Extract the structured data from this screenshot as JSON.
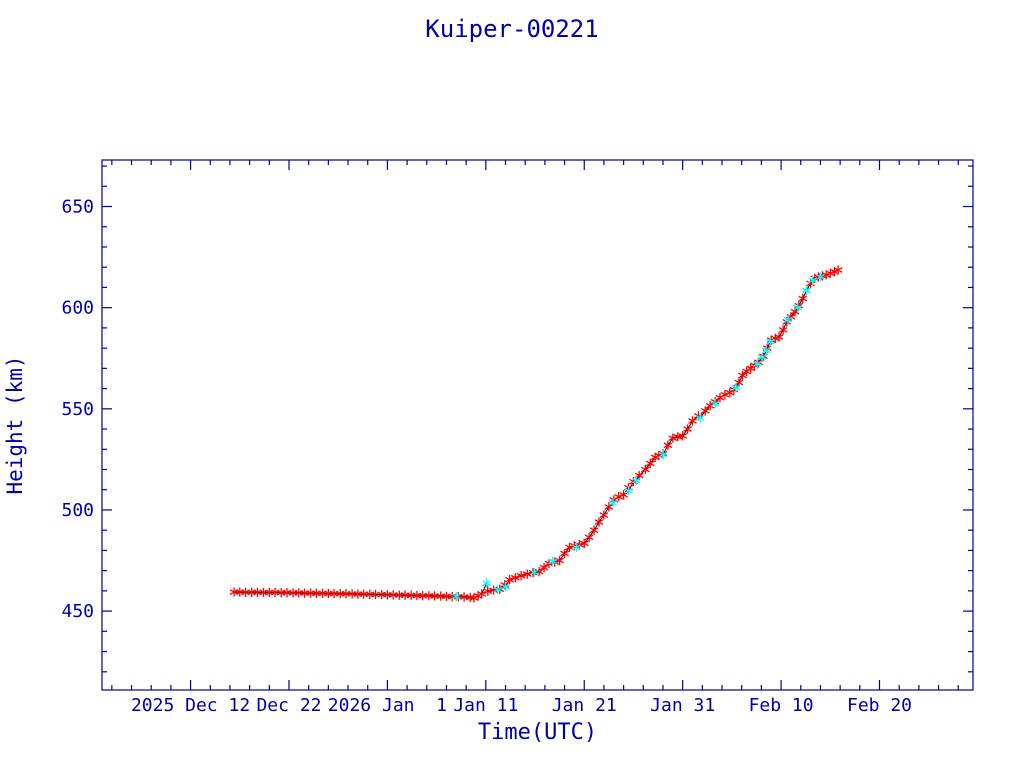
{
  "chart_data": {
    "type": "line",
    "title": "Kuiper-00221",
    "xlabel": "Time(UTC)",
    "ylabel": "Height (km)",
    "xlim": [
      "2025-12-03 00:00",
      "2026-03-01 12:00"
    ],
    "ylim": [
      411,
      673
    ],
    "grid": false,
    "x_ticks": [
      {
        "value": "2025-12-12",
        "label": "2025 Dec 12"
      },
      {
        "value": "2025-12-22",
        "label": "Dec 22"
      },
      {
        "value": "2026-01-01",
        "label": "2026 Jan  1"
      },
      {
        "value": "2026-01-11",
        "label": "Jan 11"
      },
      {
        "value": "2026-01-21",
        "label": "Jan 21"
      },
      {
        "value": "2026-01-31",
        "label": "Jan 31"
      },
      {
        "value": "2026-02-10",
        "label": "Feb 10"
      },
      {
        "value": "2026-02-20",
        "label": "Feb 20"
      }
    ],
    "x_minor_step_days": 2,
    "y_ticks": [
      450,
      500,
      550,
      600,
      650
    ],
    "y_minor_step": 10,
    "axis_color": "#000099",
    "text_color": "#0000aa",
    "line_color": "#000000",
    "series": [
      {
        "color": "#ff0000",
        "marker": "asterisk",
        "x": [
          "2025-12-16 10:00",
          "2025-12-17 00:00",
          "2025-12-17 14:00",
          "2025-12-18 05:00",
          "2025-12-18 19:00",
          "2025-12-19 10:00",
          "2025-12-20 00:00",
          "2025-12-20 14:00",
          "2025-12-21 05:00",
          "2025-12-21 19:00",
          "2025-12-22 10:00",
          "2025-12-23 00:00",
          "2025-12-23 14:00",
          "2025-12-24 05:00",
          "2025-12-24 19:00",
          "2025-12-25 10:00",
          "2025-12-26 00:00",
          "2025-12-26 14:00",
          "2025-12-27 05:00",
          "2025-12-27 19:00",
          "2025-12-28 10:00",
          "2025-12-29 00:00",
          "2025-12-29 14:00",
          "2025-12-30 05:00",
          "2025-12-30 19:00",
          "2025-12-31 10:00",
          "2026-01-01 00:00",
          "2026-01-01 14:00",
          "2026-01-02 05:00",
          "2026-01-02 19:00",
          "2026-01-03 10:00",
          "2026-01-04 00:00",
          "2026-01-04 14:00",
          "2026-01-05 05:00",
          "2026-01-05 19:00",
          "2026-01-06 10:00",
          "2026-01-07 00:00",
          "2026-01-07 14:00",
          "2026-01-08 05:00",
          "2026-01-08 19:00",
          "2026-01-09 10:00",
          "2026-01-09 19:00",
          "2026-01-10 05:00",
          "2026-01-10 14:00",
          "2026-01-11 05:00",
          "2026-01-11 19:00",
          "2026-01-12 10:00",
          "2026-01-12 22:00",
          "2026-01-13 10:00",
          "2026-01-14 00:00",
          "2026-01-14 14:00",
          "2026-01-15 05:00",
          "2026-01-15 19:00",
          "2026-01-16 10:00",
          "2026-01-16 22:00",
          "2026-01-17 10:00",
          "2026-01-18 00:00",
          "2026-01-18 12:00",
          "2026-01-19 00:00",
          "2026-01-19 12:00",
          "2026-01-20 00:00",
          "2026-01-20 12:00",
          "2026-01-21 00:00",
          "2026-01-21 12:00",
          "2026-01-22 00:00",
          "2026-01-22 12:00",
          "2026-01-23 00:00",
          "2026-01-23 12:00",
          "2026-01-24 00:00",
          "2026-01-24 12:00",
          "2026-01-25 00:00",
          "2026-01-25 12:00",
          "2026-01-26 00:00",
          "2026-01-26 14:00",
          "2026-01-27 05:00",
          "2026-01-27 17:00",
          "2026-01-28 05:00",
          "2026-01-28 14:00",
          "2026-01-29 00:00",
          "2026-01-29 12:00",
          "2026-01-30 00:00",
          "2026-01-30 12:00",
          "2026-01-31 00:00",
          "2026-01-31 12:00",
          "2026-02-01 00:00",
          "2026-02-01 14:00",
          "2026-02-02 07:00",
          "2026-02-02 19:00",
          "2026-02-03 07:00",
          "2026-02-03 19:00",
          "2026-02-04 07:00",
          "2026-02-04 19:00",
          "2026-02-05 05:00",
          "2026-02-05 17:00",
          "2026-02-06 02:00",
          "2026-02-06 12:00",
          "2026-02-06 22:00",
          "2026-02-07 07:00",
          "2026-02-07 17:00",
          "2026-02-08 05:00",
          "2026-02-08 14:00",
          "2026-02-09 00:00",
          "2026-02-09 10:00",
          "2026-02-09 19:00",
          "2026-02-10 05:00",
          "2026-02-10 14:00",
          "2026-02-11 00:00",
          "2026-02-11 10:00",
          "2026-02-11 19:00",
          "2026-02-12 05:00",
          "2026-02-12 14:00",
          "2026-02-13 00:00",
          "2026-02-13 10:00",
          "2026-02-13 19:00",
          "2026-02-14 05:00",
          "2026-02-14 14:00",
          "2026-02-15 00:00",
          "2026-02-15 10:00",
          "2026-02-15 19:00"
        ],
        "y": [
          459.4,
          459.4,
          459.3,
          459.3,
          459.3,
          459.2,
          459.2,
          459.2,
          459.1,
          459.1,
          459.0,
          459.0,
          458.9,
          458.9,
          458.8,
          458.8,
          458.7,
          458.7,
          458.6,
          458.6,
          458.5,
          458.4,
          458.4,
          458.3,
          458.2,
          458.2,
          458.1,
          458.0,
          457.9,
          457.9,
          457.8,
          457.7,
          457.6,
          457.6,
          457.5,
          457.4,
          457.3,
          457.2,
          457.1,
          457.0,
          456.8,
          456.5,
          457.5,
          458.5,
          459.8,
          460.3,
          460.8,
          463.0,
          465.5,
          466.5,
          467.5,
          468.3,
          469.0,
          469.5,
          471.5,
          473.5,
          474.2,
          475.0,
          478.5,
          481.5,
          482.3,
          482.8,
          483.5,
          486.5,
          490.0,
          494.0,
          497.5,
          501.5,
          505.0,
          506.5,
          507.5,
          511.0,
          514.0,
          517.0,
          520.0,
          523.0,
          526.0,
          527.0,
          527.8,
          532.0,
          535.5,
          536.2,
          536.6,
          540.0,
          544.0,
          546.5,
          549.0,
          551.5,
          553.5,
          555.5,
          557.0,
          558.0,
          559.5,
          563.0,
          566.5,
          568.5,
          570.0,
          571.5,
          573.0,
          576.0,
          580.0,
          584.0,
          584.8,
          585.5,
          589.0,
          593.0,
          595.5,
          598.0,
          601.0,
          604.5,
          608.5,
          612.0,
          614.5,
          615.2,
          615.7,
          616.2,
          617.0,
          617.8,
          618.6
        ]
      },
      {
        "color": "#00ffff",
        "marker": "asterisk",
        "x": [
          "2026-01-08 00:00",
          "2026-01-11 02:00",
          "2026-01-12 05:00",
          "2026-01-13 00:00",
          "2026-01-15 22:00",
          "2026-01-17 19:00",
          "2026-01-20 05:00",
          "2026-01-23 22:00",
          "2026-01-25 12:00",
          "2026-01-26 07:00",
          "2026-01-29 00:00",
          "2026-02-01 19:00",
          "2026-02-03 07:00",
          "2026-02-05 10:00",
          "2026-02-07 14:00",
          "2026-02-08 02:00",
          "2026-02-08 12:00",
          "2026-02-08 22:00",
          "2026-02-10 17:00",
          "2026-02-11 17:00",
          "2026-02-12 14:00",
          "2026-02-13 05:00",
          "2026-02-14 00:00"
        ],
        "y": [
          457.3,
          463.8,
          460.5,
          462.0,
          469.2,
          474.6,
          481.5,
          503.5,
          509.5,
          514.5,
          527.3,
          545.5,
          552.5,
          560.5,
          572.2,
          575.5,
          578.8,
          583.2,
          594.0,
          600.0,
          608.5,
          613.5,
          615.2
        ]
      }
    ]
  }
}
